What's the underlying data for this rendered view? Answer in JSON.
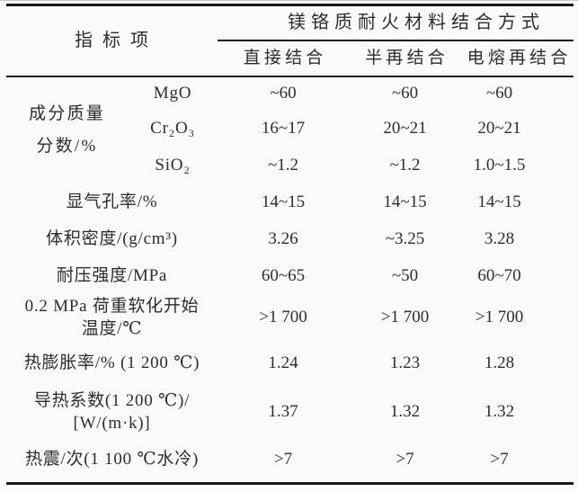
{
  "header": {
    "indicator_col": "指标项",
    "span_title": "镁铬质耐火材料结合方式",
    "columns": [
      "直接结合",
      "半再结合",
      "电熔再结合"
    ]
  },
  "composition": {
    "group_label": [
      "成分质量",
      "分数/%"
    ],
    "items": [
      {
        "name": "MgO",
        "values": [
          "~60",
          "~60",
          "~60"
        ]
      },
      {
        "name": "Cr₂O₃",
        "values": [
          "16~17",
          "20~21",
          "20~21"
        ]
      },
      {
        "name": "SiO₂",
        "values": [
          "~1.2",
          "~1.2",
          "1.0~1.5"
        ]
      }
    ]
  },
  "rows": [
    {
      "label": [
        "显气孔率/%"
      ],
      "values": [
        "14~15",
        "14~15",
        "14~15"
      ]
    },
    {
      "label": [
        "体积密度/(g/cm³)"
      ],
      "values": [
        "3.26",
        "~3.25",
        "3.28"
      ]
    },
    {
      "label": [
        "耐压强度/MPa"
      ],
      "values": [
        "60~65",
        "~50",
        "60~70"
      ]
    },
    {
      "label": [
        "0.2 MPa 荷重软化开始",
        "温度/℃"
      ],
      "values": [
        ">1 700",
        ">1 700",
        ">1 700"
      ]
    },
    {
      "label": [
        "热膨胀率/% (1 200 ℃)"
      ],
      "values": [
        "1.24",
        "1.23",
        "1.28"
      ]
    },
    {
      "label": [
        "导热系数(1 200 ℃)/",
        "[W/(m·k)]"
      ],
      "values": [
        "1.37",
        "1.32",
        "1.32"
      ]
    },
    {
      "label": [
        "热震/次(1 100 ℃水冷)"
      ],
      "values": [
        ">7",
        ">7",
        ">7"
      ]
    }
  ]
}
